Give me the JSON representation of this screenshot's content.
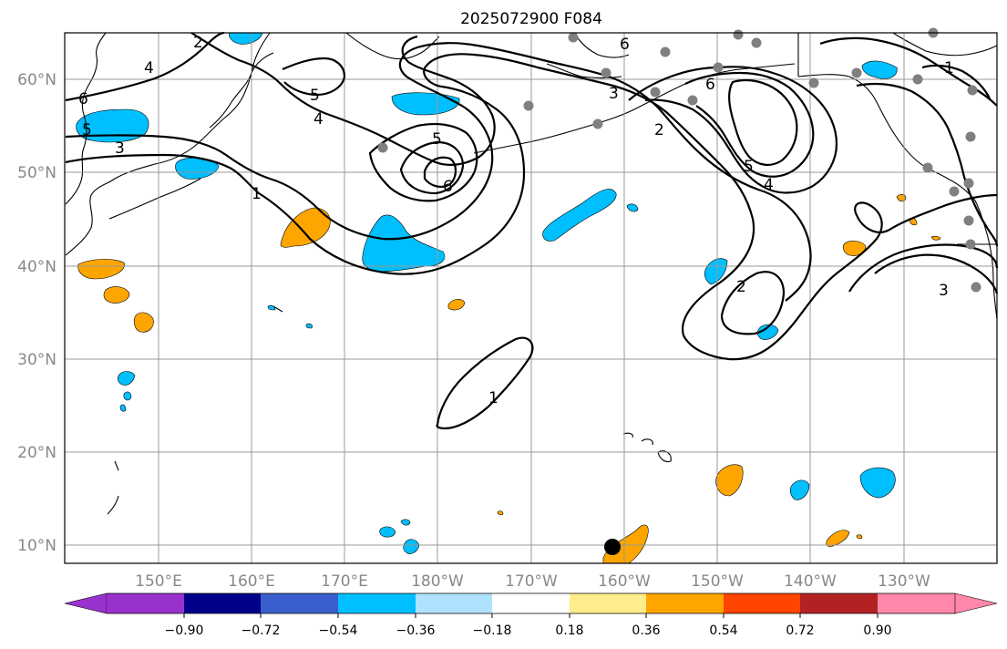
{
  "title": "2025072900 F084",
  "lat_labels": [
    "60°N",
    "50°N",
    "40°N",
    "30°N",
    "20°N",
    "10°N"
  ],
  "lon_labels": [
    "150°E",
    "160°E",
    "170°E",
    "180°W",
    "170°W",
    "160°W",
    "150°W",
    "140°W",
    "130°W"
  ],
  "colorbar": {
    "colors": [
      "#9932cc",
      "#00008b",
      "#3a5fcd",
      "#00bfff",
      "#b0e2ff",
      "#ffffff",
      "#ffec8b",
      "#ffa500",
      "#ff4500",
      "#b22222",
      "#ff88aa"
    ],
    "tick_labels": [
      "−0.90",
      "−0.72",
      "−0.54",
      "−0.36",
      "−0.18",
      "0.18",
      "0.36",
      "0.54",
      "0.72",
      "0.90"
    ]
  },
  "contour_labels": [
    "2",
    "4",
    "6",
    "5",
    "3",
    "5",
    "4",
    "5",
    "6",
    "1",
    "6",
    "3",
    "6",
    "2",
    "5",
    "4",
    "2",
    "3",
    "1",
    "1"
  ],
  "colors": {
    "positive_anomaly": "#ffa500",
    "negative_anomaly": "#00bfff",
    "station_marker": "#808080",
    "grid": "#999999",
    "contour": "#000000"
  }
}
